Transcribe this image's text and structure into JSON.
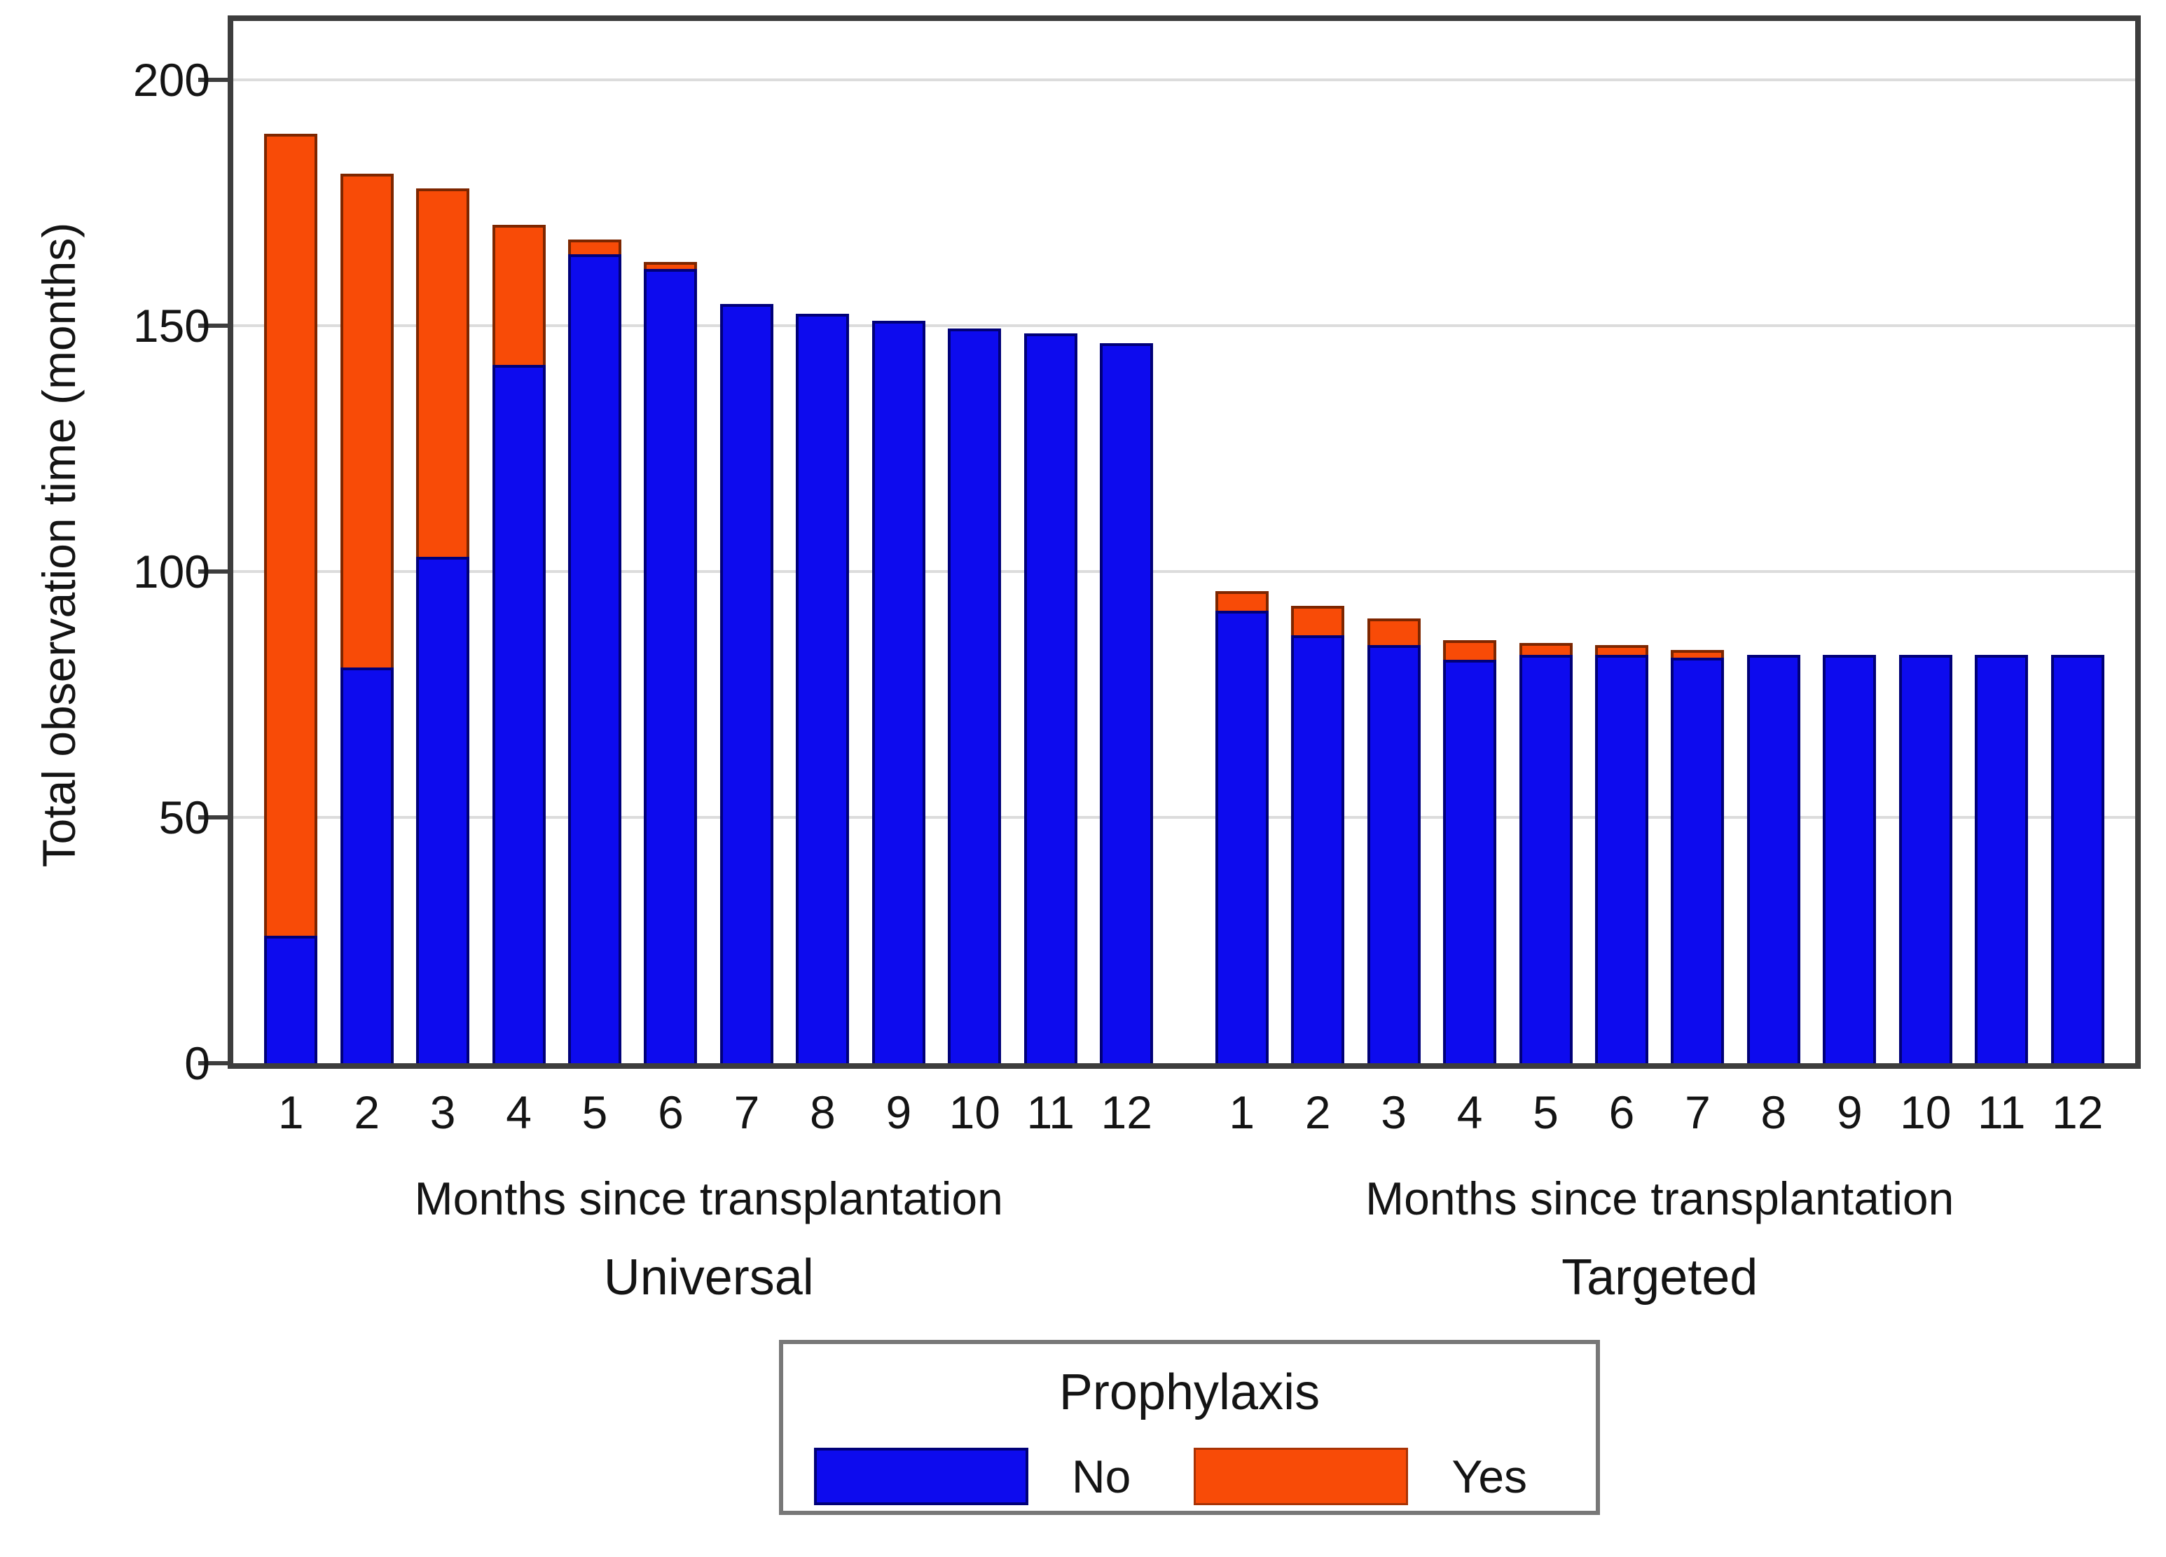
{
  "figure": {
    "background": "#ffffff",
    "frame_color": "#3d3d3d",
    "grid_color": "#dcdcdc"
  },
  "chart_data": {
    "type": "bar",
    "stacked": true,
    "title": "",
    "ylabel": "Total observation time (months)",
    "ylim": [
      0,
      212
    ],
    "yticks": [
      0,
      50,
      100,
      150,
      200
    ],
    "grid": true,
    "legend_position": "bottom-center",
    "legend": {
      "title": "Prophylaxis",
      "items": [
        {
          "label": "No",
          "color": "#0d0bee",
          "border": "#000078"
        },
        {
          "label": "Yes",
          "color": "#f84b07",
          "border": "#7d2600"
        }
      ]
    },
    "panels": [
      {
        "subtitle": "Universal",
        "xlabel": "Months since transplantation",
        "categories": [
          "1",
          "2",
          "3",
          "4",
          "5",
          "6",
          "7",
          "8",
          "9",
          "10",
          "11",
          "12"
        ],
        "series": [
          {
            "name": "No",
            "values": [
              26,
              80.5,
              103,
              142,
              164.5,
              161.5,
              154.5,
              152.5,
              151,
              149.5,
              148.5,
              146.5
            ]
          },
          {
            "name": "Yes",
            "values": [
              163,
              100.5,
              75,
              28.5,
              3,
              1.5,
              0,
              0,
              0,
              0,
              0,
              0
            ]
          }
        ]
      },
      {
        "subtitle": "Targeted",
        "xlabel": "Months since transplantation",
        "categories": [
          "1",
          "2",
          "3",
          "4",
          "5",
          "6",
          "7",
          "8",
          "9",
          "10",
          "11",
          "12"
        ],
        "series": [
          {
            "name": "No",
            "values": [
              92,
              87,
              85,
              82,
              83,
              83,
              82.5,
              83,
              83,
              83,
              83,
              83
            ]
          },
          {
            "name": "Yes",
            "values": [
              4,
              6,
              5.5,
              4,
              2.5,
              2,
              1.5,
              0,
              0,
              0,
              0,
              0
            ]
          }
        ]
      }
    ]
  }
}
